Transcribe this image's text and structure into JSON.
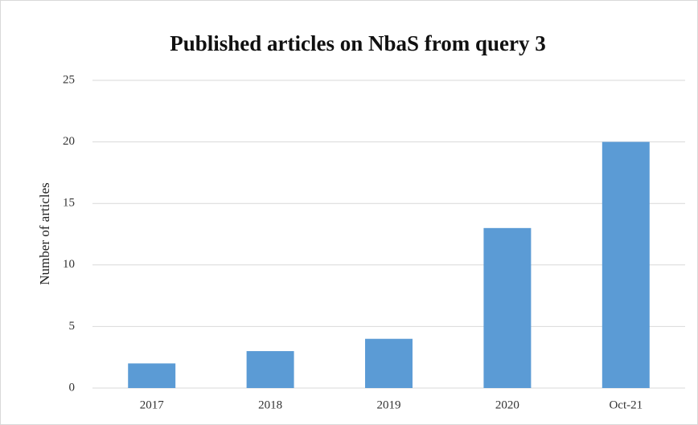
{
  "chart_data": {
    "type": "bar",
    "title": "Published articles on NbaS from query 3",
    "y_label": "Number of articles",
    "categories": [
      "2017",
      "2018",
      "2019",
      "2020",
      "Oct-21"
    ],
    "values": [
      2,
      3,
      4,
      13,
      20
    ],
    "color": "#5b9bd5",
    "ylim": [
      0,
      25
    ],
    "yticks": [
      0,
      5,
      10,
      15,
      20,
      25
    ],
    "grid": true
  }
}
